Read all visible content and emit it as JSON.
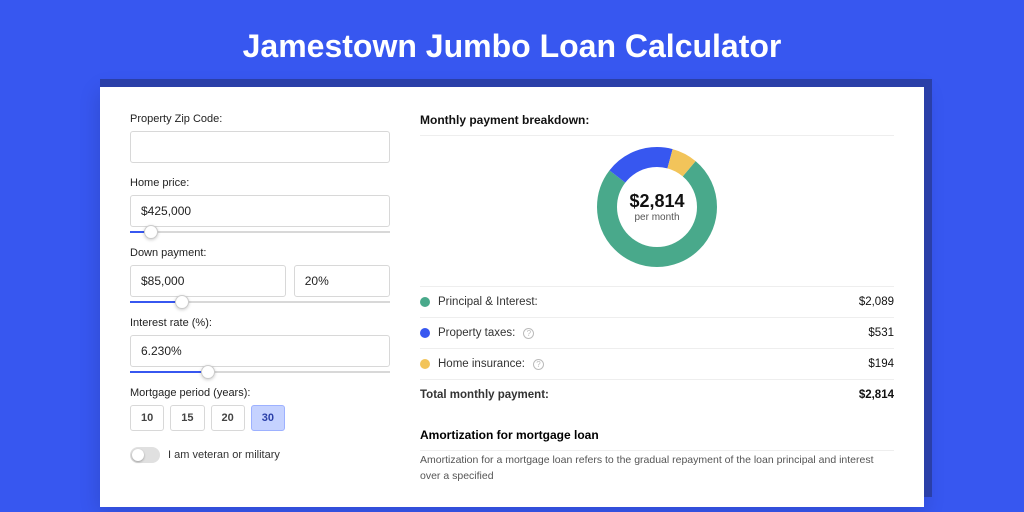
{
  "page": {
    "title": "Jamestown Jumbo Loan Calculator",
    "bg_color": "#3757f0",
    "card_bg": "#ffffff"
  },
  "form": {
    "zip": {
      "label": "Property Zip Code:",
      "value": ""
    },
    "home_price": {
      "label": "Home price:",
      "value": "$425,000",
      "slider_pct": 8
    },
    "down_payment": {
      "label": "Down payment:",
      "amount": "$85,000",
      "percent": "20%",
      "slider_pct": 20
    },
    "interest_rate": {
      "label": "Interest rate (%):",
      "value": "6.230%",
      "slider_pct": 30
    },
    "period": {
      "label": "Mortgage period (years):",
      "options": [
        "10",
        "15",
        "20",
        "30"
      ],
      "selected": "30"
    },
    "veteran": {
      "label": "I am veteran or military",
      "checked": false
    }
  },
  "breakdown": {
    "title": "Monthly payment breakdown:",
    "center_amount": "$2,814",
    "center_label": "per month",
    "donut": {
      "radius": 50,
      "stroke": 20,
      "bg": "#ffffff",
      "segments": [
        {
          "key": "principal_interest",
          "pct": 74.2,
          "color": "#49a98b"
        },
        {
          "key": "property_taxes",
          "pct": 18.9,
          "color": "#3757f0"
        },
        {
          "key": "home_insurance",
          "pct": 6.9,
          "color": "#f2c45a"
        }
      ],
      "start_angle_deg": 40
    },
    "items": [
      {
        "label": "Principal & Interest:",
        "amount": "$2,089",
        "color": "#49a98b",
        "info": false
      },
      {
        "label": "Property taxes:",
        "amount": "$531",
        "color": "#3757f0",
        "info": true
      },
      {
        "label": "Home insurance:",
        "amount": "$194",
        "color": "#f2c45a",
        "info": true
      }
    ],
    "total_label": "Total monthly payment:",
    "total_amount": "$2,814"
  },
  "amortization": {
    "title": "Amortization for mortgage loan",
    "text": "Amortization for a mortgage loan refers to the gradual repayment of the loan principal and interest over a specified"
  }
}
